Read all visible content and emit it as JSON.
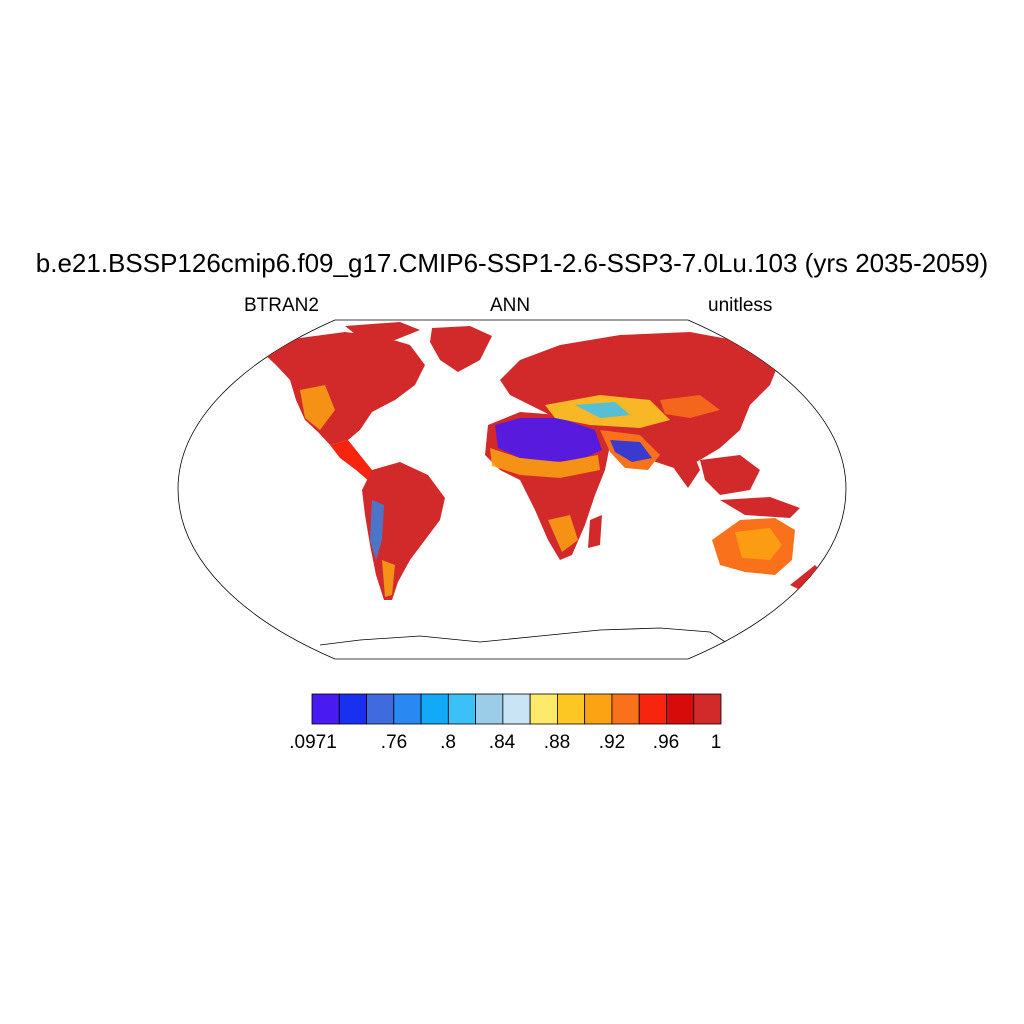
{
  "title": "b.e21.BSSP126cmip6.f09_g17.CMIP6-SSP1-2.6-SSP3-7.0Lu.103 (yrs 2035-2059)",
  "left_label": "BTRAN2",
  "center_label": "ANN",
  "right_label": "unitless",
  "projection": "Robinson",
  "colorbar": {
    "colors": [
      "#4a1af2",
      "#1a30f0",
      "#3f6ae0",
      "#2a88f2",
      "#12aaf7",
      "#3bc1f5",
      "#9bcde8",
      "#c8e4f5",
      "#fde96a",
      "#fcc623",
      "#fba312",
      "#f9711a",
      "#f8250e",
      "#d80b0b",
      "#d22a2a"
    ],
    "labels": [
      ".0971",
      ".76",
      ".8",
      ".84",
      ".88",
      ".92",
      ".96",
      "1"
    ],
    "label_boundary_index": [
      0,
      2,
      3,
      4,
      5,
      6,
      7,
      8
    ],
    "label_positions_note": "labels sit at the color boundaries listed in label_boundary_index"
  }
}
